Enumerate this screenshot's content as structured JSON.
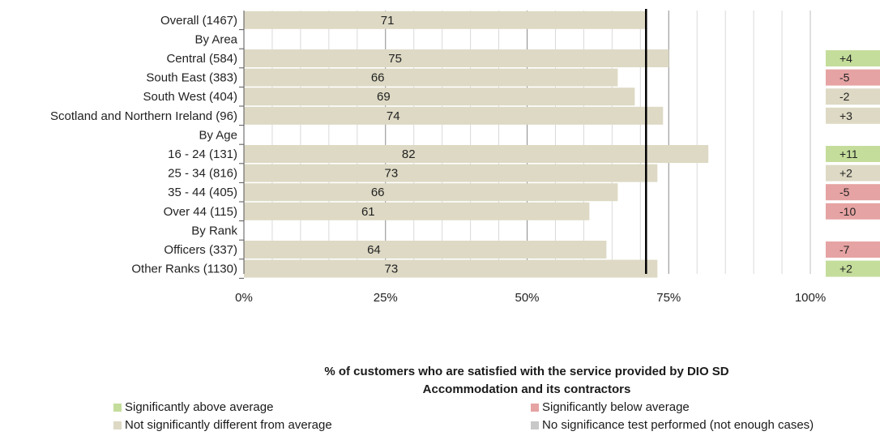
{
  "chart_data": {
    "type": "bar",
    "orientation": "horizontal",
    "categories": [
      "Overall (1467)",
      "By Area",
      "Central (584)",
      "South East (383)",
      "South West (404)",
      "Scotland and Northern Ireland (96)",
      "By Age",
      "16 - 24 (131)",
      "25 - 34 (816)",
      "35 - 44 (405)",
      "Over 44 (115)",
      "By Rank",
      "Officers (337)",
      "Other Ranks (1130)"
    ],
    "values": [
      71,
      null,
      75,
      66,
      69,
      74,
      null,
      82,
      73,
      66,
      61,
      null,
      64,
      73
    ],
    "value_labels": [
      "71",
      "",
      "75",
      "66",
      "69",
      "74",
      "",
      "82",
      "73",
      "66",
      "61",
      "",
      "64",
      "73"
    ],
    "differences": [
      "",
      "",
      "+4",
      "-5",
      "-2",
      "+3",
      "",
      "+11",
      "+2",
      "-5",
      "-10",
      "",
      "-7",
      "+2"
    ],
    "significance": [
      "",
      "",
      "above",
      "below",
      "none",
      "none",
      "",
      "above",
      "none",
      "below",
      "below",
      "",
      "below",
      "above"
    ],
    "reference_line": 71,
    "xlim": [
      0,
      100
    ],
    "xticks": [
      "0%",
      "25%",
      "50%",
      "75%",
      "100%"
    ],
    "xtick_values": [
      0,
      25,
      50,
      75,
      100
    ],
    "xlabel_line1": "% of customers who are satisfied with the service provided by DIO SD",
    "xlabel_line2": "Accommodation and its contractors",
    "grid": true,
    "legend_position": "bottom",
    "colors": {
      "bar": "#ddd9c4",
      "above": "#c4dd9b",
      "below": "#e6a3a3",
      "none": "#ddd9c4",
      "no_test": "#c8c8c8",
      "reference": "#000000"
    },
    "legend": [
      {
        "label": "Significantly above average",
        "color": "#c4dd9b"
      },
      {
        "label": "Significantly below average",
        "color": "#e6a3a3"
      },
      {
        "label": "Not significantly different from average",
        "color": "#ddd9c4"
      },
      {
        "label": "No significance test performed (not enough cases)",
        "color": "#c8c8c8"
      }
    ]
  }
}
